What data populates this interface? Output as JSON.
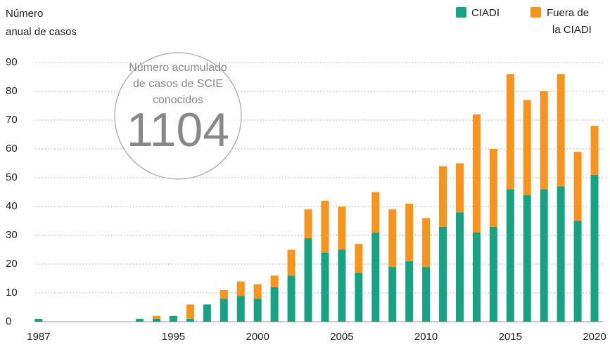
{
  "chart_data": {
    "type": "stacked-bar",
    "y_label_lines": [
      "Número",
      "anual de casos"
    ],
    "annotation": {
      "lines": [
        "Número acumulado",
        "de casos de SCIE",
        "conocidos"
      ],
      "value": 1104
    },
    "x": [
      1987,
      1993,
      1994,
      1995,
      1996,
      1997,
      1998,
      1999,
      2000,
      2001,
      2002,
      2003,
      2004,
      2005,
      2006,
      2007,
      2008,
      2009,
      2010,
      2011,
      2012,
      2013,
      2014,
      2015,
      2016,
      2017,
      2018,
      2019,
      2020
    ],
    "series": [
      {
        "name": "CIADI",
        "color": "#17a382",
        "values": [
          1,
          1,
          1,
          2,
          1,
          6,
          8,
          9,
          8,
          12,
          16,
          29,
          24,
          25,
          17,
          31,
          19,
          21,
          19,
          33,
          38,
          31,
          33,
          46,
          44,
          46,
          47,
          35,
          51
        ]
      },
      {
        "name_lines": [
          "Fuera de",
          "la CIADI"
        ],
        "color": "#f7941d",
        "values": [
          0,
          0,
          1,
          0,
          5,
          0,
          3,
          5,
          5,
          4,
          9,
          10,
          18,
          15,
          10,
          14,
          20,
          20,
          17,
          21,
          17,
          41,
          27,
          40,
          33,
          34,
          39,
          24,
          17
        ]
      }
    ],
    "xlim": [
      1986,
      2020.5
    ],
    "xticks": [
      1987,
      1995,
      2000,
      2005,
      2010,
      2015,
      2020
    ],
    "ylim": [
      0,
      90
    ],
    "yticks": [
      0,
      10,
      20,
      30,
      40,
      50,
      60,
      70,
      80,
      90
    ],
    "grid": true
  }
}
